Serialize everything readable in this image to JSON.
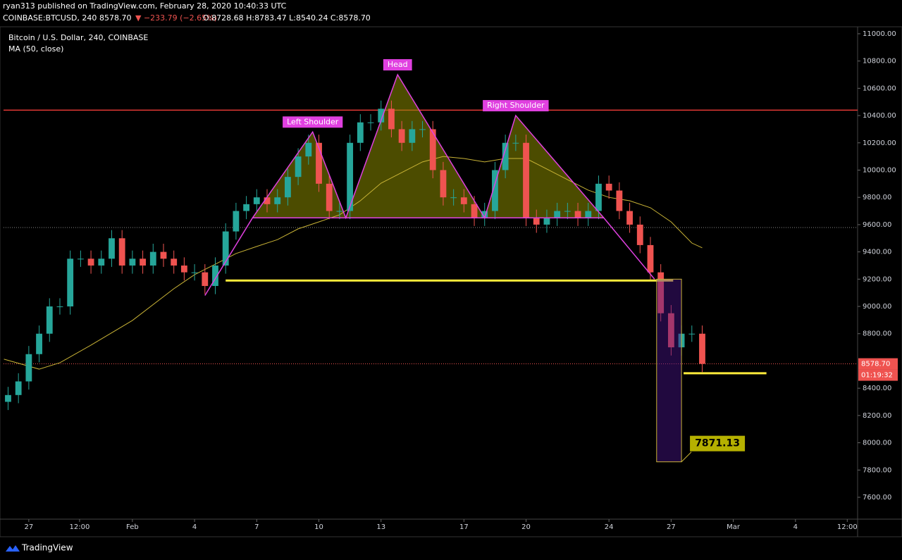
{
  "header": {
    "publisher": "ryan313 published on TradingView.com, February 28, 2020 10:40:33 UTC",
    "symbol": "COINBASE:BTCUSD, 240",
    "last": "8578.70",
    "change": "▼ −233.79 (−2.65%)",
    "ohlc": "O:8728.68 H:8783.47 L:8540.24 C:8578.70"
  },
  "footer": {
    "brand": "TradingView"
  },
  "chart_data": {
    "type": "candlestick",
    "title": "Bitcoin / U.S. Dollar, 240, COINBASE",
    "indicator": "MA (50, close)",
    "up_color": "#26a69a",
    "down_color": "#ef5350",
    "ma_color": "#c9b336",
    "xlim": [
      -1.22,
      40.0
    ],
    "ylim": [
      7450,
      11041
    ],
    "xticks": [
      {
        "value": 0,
        "label": "27"
      },
      {
        "value": 2.45,
        "label": "12:00"
      },
      {
        "value": 5,
        "label": "Feb"
      },
      {
        "value": 8,
        "label": "4"
      },
      {
        "value": 11,
        "label": "7"
      },
      {
        "value": 14,
        "label": "10"
      },
      {
        "value": 17,
        "label": "13"
      },
      {
        "value": 21,
        "label": "17"
      },
      {
        "value": 24,
        "label": "20"
      },
      {
        "value": 28,
        "label": "24"
      },
      {
        "value": 31,
        "label": "27"
      },
      {
        "value": 34,
        "label": "Mar"
      },
      {
        "value": 37,
        "label": "4"
      },
      {
        "value": 39.5,
        "label": "12:00"
      }
    ],
    "yticks": [
      {
        "value": 7600,
        "label": "7600.00"
      },
      {
        "value": 7800,
        "label": "7800.00"
      },
      {
        "value": 8000,
        "label": "8000.00"
      },
      {
        "value": 8200,
        "label": "8200.00"
      },
      {
        "value": 8400,
        "label": "8400.00"
      },
      {
        "value": 8800,
        "label": "8800.00"
      },
      {
        "value": 9000,
        "label": "9000.00"
      },
      {
        "value": 9200,
        "label": "9200.00"
      },
      {
        "value": 9400,
        "label": "9400.00"
      },
      {
        "value": 9600,
        "label": "9600.00"
      },
      {
        "value": 9800,
        "label": "9800.00"
      },
      {
        "value": 10000,
        "label": "10000.00"
      },
      {
        "value": 10200,
        "label": "10200.00"
      },
      {
        "value": 10400,
        "label": "10400.00"
      },
      {
        "value": 10600,
        "label": "10600.00"
      },
      {
        "value": 10800,
        "label": "10800.00"
      },
      {
        "value": 11000,
        "label": "11000.00"
      }
    ],
    "candles": {
      "x": [
        -1,
        -0.5,
        0,
        0.5,
        1,
        1.5,
        2,
        2.5,
        3,
        3.5,
        4,
        4.5,
        5,
        5.5,
        6,
        6.5,
        7,
        7.5,
        8,
        8.5,
        9,
        9.5,
        10,
        10.5,
        11,
        11.5,
        12,
        12.5,
        13,
        13.5,
        14,
        14.5,
        15,
        15.5,
        16,
        16.5,
        17,
        17.5,
        18,
        18.5,
        19,
        19.5,
        20,
        20.5,
        21,
        21.5,
        22,
        22.5,
        23,
        23.5,
        24,
        24.5,
        25,
        25.5,
        26,
        26.5,
        27,
        27.5,
        28,
        28.5,
        29,
        29.5,
        30,
        30.5,
        31,
        31.5,
        32,
        32.5
      ],
      "open": [
        8300,
        8350,
        8450,
        8650,
        8800,
        9000,
        9000,
        9350,
        9350,
        9300,
        9350,
        9500,
        9300,
        9350,
        9300,
        9400,
        9350,
        9300,
        9250,
        9250,
        9150,
        9300,
        9550,
        9700,
        9750,
        9800,
        9750,
        9800,
        9950,
        10100,
        10200,
        9900,
        9700,
        9700,
        10200,
        10350,
        10350,
        10450,
        10300,
        10200,
        10300,
        10300,
        10000,
        9800,
        9800,
        9750,
        9650,
        9700,
        10000,
        10200,
        10200,
        9650,
        9600,
        9650,
        9700,
        9700,
        9650,
        9700,
        9900,
        9850,
        9700,
        9600,
        9450,
        9250,
        8950,
        8700,
        8800,
        8800
      ],
      "high": [
        8410,
        8510,
        8710,
        8860,
        9060,
        9060,
        9410,
        9410,
        9410,
        9410,
        9560,
        9560,
        9410,
        9410,
        9460,
        9460,
        9410,
        9360,
        9310,
        9310,
        9360,
        9610,
        9760,
        9810,
        9860,
        9860,
        9860,
        10010,
        10160,
        10260,
        10260,
        9960,
        9760,
        10260,
        10410,
        10410,
        10510,
        10510,
        10360,
        10360,
        10360,
        10360,
        10060,
        9860,
        9860,
        9810,
        9760,
        10060,
        10260,
        10260,
        10260,
        9710,
        9710,
        9760,
        9760,
        9760,
        9760,
        9960,
        9960,
        9910,
        9760,
        9660,
        9510,
        9310,
        9010,
        8860,
        8860,
        8860
      ],
      "low": [
        8240,
        8290,
        8390,
        8590,
        8740,
        8940,
        8940,
        9290,
        9240,
        9240,
        9290,
        9240,
        9240,
        9240,
        9240,
        9290,
        9240,
        9190,
        9190,
        9090,
        9090,
        9240,
        9490,
        9640,
        9690,
        9690,
        9690,
        9740,
        9890,
        10040,
        9840,
        9640,
        9640,
        9640,
        10140,
        10290,
        10290,
        10240,
        10140,
        10140,
        10240,
        9940,
        9740,
        9740,
        9690,
        9590,
        9590,
        9640,
        9940,
        10140,
        9590,
        9540,
        9540,
        9590,
        9640,
        9590,
        9590,
        9640,
        9790,
        9640,
        9540,
        9390,
        9190,
        8890,
        8640,
        8640,
        8740,
        8518.7
      ],
      "close": [
        8350,
        8450,
        8650,
        8800,
        9000,
        9000,
        9350,
        9350,
        9300,
        9350,
        9500,
        9300,
        9350,
        9300,
        9400,
        9350,
        9300,
        9250,
        9250,
        9150,
        9300,
        9550,
        9700,
        9750,
        9800,
        9750,
        9800,
        9950,
        10100,
        10200,
        9900,
        9700,
        9700,
        10200,
        10350,
        10350,
        10450,
        10300,
        10200,
        10300,
        10300,
        10000,
        9800,
        9800,
        9750,
        9650,
        9700,
        10000,
        10200,
        10200,
        9650,
        9600,
        9650,
        9700,
        9700,
        9650,
        9700,
        9900,
        9850,
        9700,
        9600,
        9450,
        9250,
        8950,
        8700,
        8800,
        8800,
        8578.7
      ]
    },
    "ma": {
      "x": [
        -1.2,
        0.5,
        1.5,
        3,
        5,
        7,
        8,
        9,
        10,
        11,
        12,
        13,
        14,
        15,
        16,
        17,
        18,
        19,
        20,
        21,
        22,
        23,
        24,
        25,
        26,
        27,
        28,
        29,
        30,
        31,
        32,
        32.5
      ],
      "values": [
        8613,
        8540,
        8587,
        8716,
        8897,
        9130,
        9233,
        9310,
        9388,
        9440,
        9490,
        9569,
        9620,
        9672,
        9775,
        9904,
        9982,
        10060,
        10100,
        10085,
        10060,
        10085,
        10085,
        10008,
        9930,
        9853,
        9800,
        9775,
        9724,
        9620,
        9465,
        9430
      ]
    },
    "pattern": {
      "color": "#e040e0",
      "fill": "#8a8a00",
      "x": [
        8.5,
        10.8,
        13.7,
        15.3,
        17.8,
        22.0,
        23.5,
        27.75,
        30.2
      ],
      "y": [
        9080,
        9650,
        10280,
        9650,
        10700,
        9650,
        10400,
        9650,
        9200
      ],
      "labels": [
        "Left Shoulder",
        "Head",
        "Right Shoulder"
      ]
    },
    "resistance": {
      "value": 10440,
      "color": "#e53935"
    },
    "support_lines": [
      {
        "value": 9190,
        "x": [
          9.5,
          31.1
        ]
      },
      {
        "value": 8510,
        "x": [
          31.6,
          35.6
        ]
      }
    ],
    "support_color": "#ffeb3b",
    "target": {
      "x": [
        30.3,
        31.5
      ],
      "y": [
        9200,
        7860
      ],
      "label": "7871.13"
    },
    "reference_level": 9579,
    "last_price": {
      "value": 8578.7,
      "label": "8578.70"
    },
    "countdown": "01:19:32"
  }
}
